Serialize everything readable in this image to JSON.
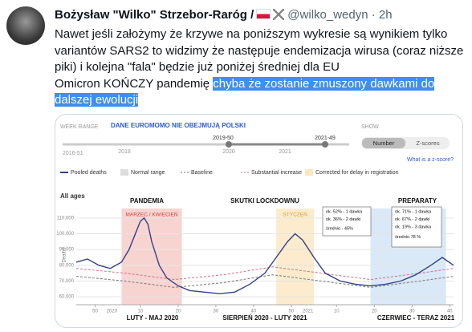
{
  "tweet": {
    "author": "Bożysław \"Wilko\" Strzebor-Raróg /",
    "handle": "@wilko_wedyn",
    "separator": "·",
    "time": "2h",
    "lines": [
      "Nawet jeśli założymy że krzywe na poniższym wykresie są wynikiem tylko",
      "variantów SARS2 to widzimy że następuje endemizacja wirusa (coraz niższe",
      "piki) i kolejna \"fala\" będzie już poniżej średniej dla EU",
      "Omicron KOŃCZY pandemię"
    ],
    "highlight": [
      "chyba że zostanie zmuszony dawkami do",
      "dalszej ewolucji"
    ]
  },
  "controls": {
    "week_range_label": "WEEK RANGE",
    "banner": "DANE EUROMOMO NIE OBEJMUJĄ POLSKI",
    "slider_labels": [
      "2016-51",
      "2018",
      "2020",
      "2021"
    ],
    "slider_selected": [
      "2019-50",
      "2021-49"
    ],
    "show_label": "SHOW",
    "toggle": [
      "Number",
      "Z-scores"
    ],
    "link": "What is a z-score?"
  },
  "chart_data": {
    "type": "line",
    "legend": [
      "Pooled deaths",
      "Normal range",
      "Baseline",
      "Substantial increase",
      "Corrected for delay in registration"
    ],
    "subtitle": "All ages",
    "y_label": "Deaths",
    "xlim": [
      0,
      100
    ],
    "ylim": [
      55000,
      115000
    ],
    "yticks": [
      {
        "value": 60000,
        "label": "60,000"
      },
      {
        "value": 70000,
        "label": "70,000"
      },
      {
        "value": 80000,
        "label": "80,000"
      },
      {
        "value": 90000,
        "label": "90,000"
      },
      {
        "value": 100000,
        "label": "100,000"
      },
      {
        "value": 110000,
        "label": "110,000"
      }
    ],
    "xticks": [
      {
        "value": 5,
        "label": "50"
      },
      {
        "value": 17,
        "label": "10"
      },
      {
        "value": 27,
        "label": "20"
      },
      {
        "value": 37,
        "label": "30"
      },
      {
        "value": 47,
        "label": "40"
      },
      {
        "value": 57,
        "label": "50"
      },
      {
        "value": 69,
        "label": "10"
      },
      {
        "value": 79,
        "label": "20"
      },
      {
        "value": 89,
        "label": "30"
      },
      {
        "value": 99,
        "label": "40"
      }
    ],
    "year_labels": [
      {
        "value": 8,
        "label": "2020"
      },
      {
        "value": 60,
        "label": "2021"
      }
    ],
    "series": [
      {
        "name": "Pooled deaths",
        "color": "#34418a",
        "x": [
          0,
          3,
          6,
          9,
          12,
          14,
          16,
          17,
          18,
          19,
          20,
          22,
          24,
          27,
          30,
          34,
          38,
          42,
          46,
          50,
          53,
          56,
          58,
          60,
          63,
          66,
          70,
          74,
          78,
          82,
          86,
          90,
          94,
          97,
          100
        ],
        "values": [
          82000,
          84000,
          80000,
          78000,
          82000,
          90000,
          102000,
          108000,
          110000,
          106000,
          95000,
          80000,
          72000,
          67000,
          64000,
          63000,
          62000,
          63000,
          68000,
          75000,
          85000,
          95000,
          100000,
          96000,
          85000,
          75000,
          70000,
          68000,
          67000,
          68000,
          70000,
          74000,
          80000,
          85000,
          80000
        ]
      },
      {
        "name": "Baseline",
        "color": "#777777",
        "dash": true,
        "x": [
          0,
          13,
          26,
          39,
          52,
          65,
          78,
          91,
          100
        ],
        "values": [
          73000,
          70000,
          66000,
          69000,
          74000,
          70000,
          66000,
          70000,
          73000
        ]
      },
      {
        "name": "Substantial increase",
        "color": "#d0708a",
        "dash": true,
        "x": [
          0,
          13,
          26,
          39,
          52,
          65,
          78,
          91,
          100
        ],
        "values": [
          78000,
          75000,
          71000,
          74000,
          79000,
          75000,
          71000,
          75000,
          78000
        ]
      }
    ],
    "regions": [
      {
        "label": "MARZEC / KWIECIEŃ",
        "start": 12,
        "end": 28,
        "color": "#f6c9c4",
        "text_color": "#d0453a"
      },
      {
        "label": "STYCZEŃ",
        "start": 53,
        "end": 63,
        "color": "#fbe7c0",
        "text_color": "#d89a2a"
      },
      {
        "start": 78,
        "end": 98,
        "color": "#cfe3f5"
      }
    ],
    "period_titles": [
      "PANDEMIA",
      "SKUTKI LOCKDOWNU",
      "PREPARATY"
    ],
    "period_ranges": [
      "LUTY - MAJ 2020",
      "SIERPIEŃ 2020 - LUTY 2021",
      "CZERWIEC - TERAZ 2021"
    ],
    "boxes": [
      [
        "ok. 52% - 1 dawka",
        "ok. 36% - 2 dawki",
        "średnio - 45%"
      ],
      [
        "ok. 71% - 1 dawka",
        "ok. 67% - 2 dawki",
        "ok. 19% - 3 dawka",
        "średnio 78 %"
      ]
    ]
  }
}
